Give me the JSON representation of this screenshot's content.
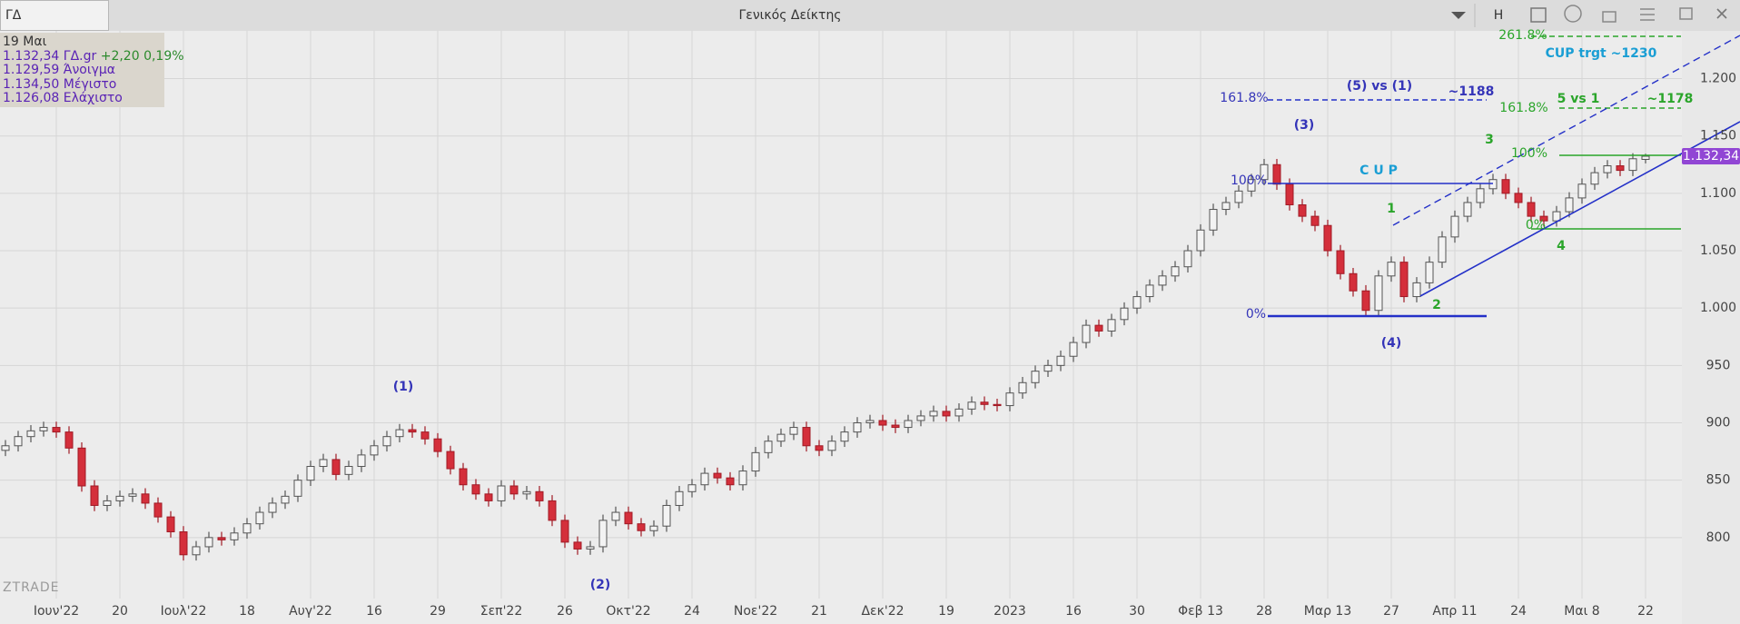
{
  "header": {
    "symbol": "ΓΔ",
    "title": "Γενικός Δείκτης",
    "button": "H"
  },
  "panel": {
    "date": "19 Μαι",
    "last": "1.132,34 ΓΔ.gr",
    "change": "+2,20 0,19%",
    "open": "1.129,59 Άνοιγμα",
    "high": "1.134,50 Μέγιστο",
    "low": "1.126,08 Ελάχιστο"
  },
  "chart_data": {
    "type": "candlestick",
    "categories": [
      null,
      null,
      null,
      null,
      "Ιουν'22",
      null,
      null,
      null,
      null,
      "20",
      null,
      null,
      null,
      null,
      "Ιουλ'22",
      null,
      null,
      null,
      null,
      "18",
      null,
      null,
      null,
      null,
      "Αυγ'22",
      null,
      null,
      null,
      null,
      "16",
      null,
      null,
      null,
      null,
      "29",
      null,
      null,
      null,
      null,
      "Σεπ'22",
      null,
      null,
      null,
      null,
      "26",
      null,
      null,
      null,
      null,
      "Οκτ'22",
      null,
      null,
      null,
      null,
      "24",
      null,
      null,
      null,
      null,
      "Νοε'22",
      null,
      null,
      null,
      null,
      "21",
      null,
      null,
      null,
      null,
      "Δεκ'22",
      null,
      null,
      null,
      null,
      "19",
      null,
      null,
      null,
      null,
      "2023",
      null,
      null,
      null,
      null,
      "16",
      null,
      null,
      null,
      null,
      "30",
      null,
      null,
      null,
      null,
      "Φεβ 13",
      null,
      null,
      null,
      null,
      "28",
      null,
      null,
      null,
      null,
      "Μαρ 13",
      null,
      null,
      null,
      null,
      "27",
      null,
      null,
      null,
      null,
      "Απρ 11",
      null,
      null,
      null,
      null,
      "24",
      null,
      null,
      null,
      null,
      "Μαι 8",
      null,
      null,
      null,
      null,
      "22"
    ],
    "open": [
      876,
      880,
      888,
      893,
      896,
      892,
      878,
      845,
      828,
      832,
      836,
      838,
      830,
      818,
      805,
      785,
      792,
      800,
      798,
      804,
      812,
      822,
      830,
      836,
      850,
      862,
      868,
      855,
      862,
      872,
      880,
      888,
      894,
      892,
      886,
      875,
      860,
      846,
      838,
      832,
      845,
      838,
      840,
      832,
      815,
      796,
      790,
      792,
      815,
      822,
      812,
      806,
      810,
      828,
      840,
      846,
      856,
      852,
      846,
      858,
      874,
      884,
      890,
      896,
      880,
      876,
      884,
      892,
      900,
      902,
      898,
      896,
      902,
      906,
      910,
      906,
      912,
      918,
      916,
      915,
      926,
      935,
      945,
      950,
      958,
      970,
      985,
      980,
      990,
      1000,
      1010,
      1020,
      1028,
      1036,
      1050,
      1068,
      1086,
      1092,
      1102,
      1112,
      1125,
      1108,
      1090,
      1080,
      1072,
      1050,
      1030,
      1015,
      998,
      1028,
      1040,
      1010,
      1022,
      1040,
      1062,
      1080,
      1092,
      1104,
      1112,
      1100,
      1092,
      1080,
      1076,
      1084,
      1096,
      1108,
      1118,
      1124,
      1120,
      1129.59
    ],
    "high": [
      885,
      893,
      898,
      901,
      901,
      897,
      883,
      850,
      837,
      841,
      843,
      843,
      835,
      823,
      810,
      797,
      805,
      805,
      809,
      817,
      827,
      835,
      841,
      855,
      867,
      873,
      873,
      867,
      877,
      885,
      893,
      899,
      899,
      897,
      891,
      880,
      865,
      851,
      843,
      850,
      850,
      845,
      845,
      837,
      820,
      801,
      797,
      820,
      827,
      827,
      817,
      815,
      833,
      845,
      851,
      861,
      861,
      857,
      863,
      879,
      889,
      895,
      901,
      901,
      885,
      889,
      897,
      905,
      907,
      907,
      903,
      907,
      911,
      915,
      915,
      917,
      923,
      923,
      921,
      931,
      940,
      950,
      955,
      963,
      975,
      990,
      990,
      995,
      1005,
      1015,
      1025,
      1033,
      1041,
      1055,
      1073,
      1091,
      1097,
      1107,
      1117,
      1130,
      1130,
      1113,
      1095,
      1085,
      1077,
      1055,
      1035,
      1020,
      1033,
      1045,
      1045,
      1027,
      1045,
      1067,
      1085,
      1097,
      1109,
      1117,
      1117,
      1105,
      1097,
      1085,
      1089,
      1101,
      1113,
      1123,
      1129,
      1129,
      1135,
      1134.5
    ],
    "low": [
      871,
      875,
      883,
      888,
      887,
      873,
      840,
      823,
      823,
      827,
      831,
      825,
      813,
      800,
      780,
      780,
      787,
      793,
      793,
      799,
      807,
      817,
      825,
      831,
      845,
      857,
      850,
      850,
      857,
      867,
      875,
      883,
      887,
      881,
      870,
      855,
      841,
      833,
      827,
      827,
      833,
      833,
      827,
      810,
      791,
      785,
      785,
      787,
      810,
      807,
      801,
      801,
      805,
      823,
      835,
      841,
      847,
      841,
      841,
      853,
      869,
      879,
      885,
      875,
      871,
      871,
      879,
      887,
      895,
      893,
      891,
      891,
      897,
      901,
      901,
      901,
      907,
      911,
      910,
      910,
      921,
      930,
      940,
      945,
      953,
      965,
      975,
      975,
      985,
      995,
      1005,
      1015,
      1023,
      1031,
      1045,
      1063,
      1081,
      1087,
      1097,
      1107,
      1103,
      1085,
      1075,
      1067,
      1045,
      1025,
      1010,
      993,
      993,
      1023,
      1005,
      1005,
      1017,
      1035,
      1057,
      1075,
      1087,
      1099,
      1095,
      1087,
      1075,
      1071,
      1071,
      1079,
      1091,
      1103,
      1113,
      1115,
      1115,
      1126.08
    ],
    "close": [
      880,
      888,
      893,
      896,
      892,
      878,
      845,
      828,
      832,
      836,
      838,
      830,
      818,
      805,
      785,
      792,
      800,
      798,
      804,
      812,
      822,
      830,
      836,
      850,
      862,
      868,
      855,
      862,
      872,
      880,
      888,
      894,
      892,
      886,
      875,
      860,
      846,
      838,
      832,
      845,
      838,
      840,
      832,
      815,
      796,
      790,
      792,
      815,
      822,
      812,
      806,
      810,
      828,
      840,
      846,
      856,
      852,
      846,
      858,
      874,
      884,
      890,
      896,
      880,
      876,
      884,
      892,
      900,
      902,
      898,
      896,
      902,
      906,
      910,
      906,
      912,
      918,
      916,
      915,
      926,
      935,
      945,
      950,
      958,
      970,
      985,
      980,
      990,
      1000,
      1010,
      1020,
      1028,
      1036,
      1050,
      1068,
      1086,
      1092,
      1102,
      1112,
      1125,
      1108,
      1090,
      1080,
      1072,
      1050,
      1030,
      1015,
      998,
      1028,
      1040,
      1010,
      1022,
      1040,
      1062,
      1080,
      1092,
      1104,
      1112,
      1100,
      1092,
      1080,
      1076,
      1084,
      1096,
      1108,
      1118,
      1124,
      1120,
      1130.14,
      1132.34
    ],
    "up_color": "#f3f3f3",
    "down_color": "#d42f3b",
    "last_price_label": "1.132,34",
    "last_price_color": "#9146d4",
    "ylim": [
      750,
      1240
    ],
    "yticks": [
      800,
      850,
      900,
      950,
      {
        "value": 1000,
        "label": "1.000"
      },
      {
        "value": 1050,
        "label": "1.050"
      },
      {
        "value": 1100,
        "label": "1.100"
      },
      {
        "value": 1150,
        "label": "1.150"
      },
      {
        "value": 1200,
        "label": "1.200"
      }
    ],
    "grid": true,
    "annotations": [
      "(1)",
      "(2)",
      "(3)",
      "(4)",
      "(5) vs (1)",
      "~1188",
      "161.8%",
      "CUP trgt ~1230",
      "261.8%",
      "5 vs 1",
      "~1178",
      "161.8%",
      "100%",
      "C U P",
      "1",
      "2",
      "3",
      "4",
      "100%",
      "0%",
      "0%"
    ],
    "watermark": "ZTRADE"
  }
}
